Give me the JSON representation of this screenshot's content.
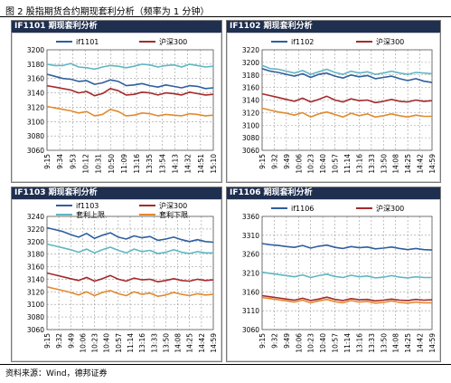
{
  "figure_title": "图 2 股指期货合约期现套利分析（频率为 1 分钟）",
  "source": "资料来源：Wind，德邦证券",
  "colors": {
    "header_bg": "#1f2f50",
    "if_series": "#2f5f9e",
    "hs300_series": "#a52a2a",
    "upper_bound": "#5fb7c3",
    "lower_bound": "#e38a2f"
  },
  "chart_data": [
    {
      "type": "line",
      "title": "IF1101 期现套利分析",
      "x_ticks": [
        "9:15",
        "9:34",
        "9:53",
        "10:12",
        "10:31",
        "10:50",
        "11:09",
        "13:16",
        "13:35",
        "13:54",
        "14:13",
        "14:32",
        "14:51",
        "15:10"
      ],
      "y_ticks": [
        3060,
        3080,
        3100,
        3120,
        3140,
        3160,
        3180,
        3200
      ],
      "ylim": [
        3060,
        3200
      ],
      "grid": true,
      "legend_position": "top",
      "legend": [
        "if1101",
        "沪深300"
      ],
      "series": [
        {
          "name": "if1101",
          "color_key": "if_series",
          "values": [
            3166,
            3163,
            3160,
            3159,
            3156,
            3157,
            3152,
            3154,
            3158,
            3156,
            3150,
            3151,
            3153,
            3150,
            3148,
            3151,
            3149,
            3147,
            3150,
            3149,
            3146,
            3147
          ]
        },
        {
          "name": "沪深300",
          "color_key": "hs300_series",
          "values": [
            3150,
            3148,
            3146,
            3144,
            3140,
            3142,
            3136,
            3139,
            3146,
            3143,
            3137,
            3138,
            3141,
            3140,
            3137,
            3140,
            3139,
            3137,
            3141,
            3139,
            3137,
            3138
          ]
        },
        {
          "color_key": "upper_bound",
          "values": [
            3180,
            3178,
            3178,
            3181,
            3176,
            3175,
            3173,
            3176,
            3178,
            3177,
            3175,
            3177,
            3180,
            3179,
            3176,
            3178,
            3179,
            3176,
            3180,
            3178,
            3176,
            3177
          ]
        },
        {
          "color_key": "lower_bound",
          "values": [
            3121,
            3119,
            3117,
            3115,
            3112,
            3114,
            3108,
            3110,
            3117,
            3114,
            3108,
            3109,
            3112,
            3111,
            3108,
            3110,
            3109,
            3108,
            3111,
            3110,
            3108,
            3109
          ]
        }
      ]
    },
    {
      "type": "line",
      "title": "IF1102 期现套利分析",
      "x_ticks": [
        "9:15",
        "9:32",
        "9:49",
        "10:06",
        "10:23",
        "10:40",
        "10:57",
        "11:14",
        "13:16",
        "13:33",
        "13:50",
        "14:08",
        "14:25",
        "14:42",
        "14:59"
      ],
      "y_ticks": [
        3060,
        3080,
        3100,
        3120,
        3140,
        3160,
        3180,
        3200,
        3220
      ],
      "ylim": [
        3060,
        3220
      ],
      "grid": true,
      "legend_position": "top",
      "legend": [
        "if1102",
        "沪深300"
      ],
      "series": [
        {
          "name": "if1102",
          "color_key": "if_series",
          "values": [
            3190,
            3186,
            3184,
            3181,
            3178,
            3182,
            3176,
            3181,
            3183,
            3178,
            3175,
            3180,
            3177,
            3179,
            3174,
            3176,
            3178,
            3174,
            3171,
            3174,
            3170,
            3168
          ]
        },
        {
          "name": "沪深300",
          "color_key": "hs300_series",
          "values": [
            3150,
            3147,
            3144,
            3141,
            3138,
            3143,
            3137,
            3141,
            3146,
            3140,
            3137,
            3142,
            3139,
            3140,
            3136,
            3138,
            3141,
            3138,
            3137,
            3140,
            3138,
            3139
          ]
        },
        {
          "color_key": "upper_bound",
          "values": [
            3195,
            3190,
            3189,
            3186,
            3183,
            3187,
            3181,
            3185,
            3189,
            3184,
            3181,
            3186,
            3183,
            3185,
            3181,
            3183,
            3186,
            3183,
            3181,
            3184,
            3183,
            3182
          ]
        },
        {
          "color_key": "lower_bound",
          "values": [
            3127,
            3124,
            3121,
            3119,
            3116,
            3120,
            3113,
            3118,
            3121,
            3117,
            3113,
            3119,
            3115,
            3118,
            3113,
            3115,
            3118,
            3115,
            3113,
            3116,
            3114,
            3114
          ]
        }
      ]
    },
    {
      "type": "line",
      "title": "IF1103 期现套利分析",
      "x_ticks": [
        "9:15",
        "9:32",
        "9:49",
        "10:06",
        "10:23",
        "10:40",
        "10:57",
        "11:14",
        "13:16",
        "13:33",
        "13:50",
        "14:08",
        "14:25",
        "14:42",
        "14:59"
      ],
      "y_ticks": [
        3060,
        3080,
        3100,
        3120,
        3140,
        3160,
        3180,
        3200,
        3220,
        3240
      ],
      "ylim": [
        3060,
        3240
      ],
      "grid": true,
      "legend_position": "top",
      "legend": [
        "if1103",
        "沪深300",
        "套利上限",
        "套利下限"
      ],
      "series": [
        {
          "name": "if1103",
          "color_key": "if_series",
          "values": [
            3222,
            3219,
            3216,
            3211,
            3207,
            3213,
            3205,
            3210,
            3214,
            3207,
            3204,
            3209,
            3206,
            3208,
            3202,
            3204,
            3207,
            3203,
            3200,
            3203,
            3200,
            3199
          ]
        },
        {
          "name": "沪深300",
          "color_key": "hs300_series",
          "values": [
            3150,
            3147,
            3144,
            3141,
            3138,
            3143,
            3137,
            3141,
            3146,
            3140,
            3137,
            3142,
            3139,
            3140,
            3136,
            3138,
            3141,
            3138,
            3137,
            3140,
            3138,
            3139
          ]
        },
        {
          "name": "套利上限",
          "color_key": "upper_bound",
          "values": [
            3196,
            3193,
            3190,
            3187,
            3183,
            3188,
            3182,
            3187,
            3191,
            3186,
            3182,
            3188,
            3184,
            3186,
            3181,
            3183,
            3187,
            3183,
            3181,
            3184,
            3182,
            3182
          ]
        },
        {
          "name": "套利下限",
          "color_key": "lower_bound",
          "values": [
            3128,
            3125,
            3122,
            3119,
            3115,
            3120,
            3114,
            3119,
            3122,
            3117,
            3114,
            3120,
            3116,
            3118,
            3113,
            3115,
            3119,
            3116,
            3114,
            3117,
            3115,
            3116
          ]
        }
      ]
    },
    {
      "type": "line",
      "title": "IF1106 期现套利分析",
      "x_ticks": [
        "9:15",
        "9:32",
        "9:49",
        "10:06",
        "10:23",
        "10:40",
        "10:57",
        "11:14",
        "13:16",
        "13:33",
        "13:50",
        "14:08",
        "14:25",
        "14:42",
        "14:59"
      ],
      "y_ticks": [
        3060,
        3110,
        3160,
        3210,
        3260,
        3310,
        3360
      ],
      "ylim": [
        3060,
        3360
      ],
      "grid": true,
      "legend_position": "top",
      "legend": [
        "if1106",
        "沪深300"
      ],
      "series": [
        {
          "name": "if1106",
          "color_key": "if_series",
          "values": [
            3288,
            3285,
            3283,
            3280,
            3278,
            3283,
            3276,
            3281,
            3284,
            3278,
            3275,
            3280,
            3277,
            3279,
            3274,
            3276,
            3279,
            3275,
            3272,
            3275,
            3272,
            3271
          ]
        },
        {
          "name": "沪深300",
          "color_key": "hs300_series",
          "values": [
            3150,
            3147,
            3144,
            3141,
            3138,
            3143,
            3137,
            3141,
            3146,
            3140,
            3137,
            3142,
            3139,
            3140,
            3136,
            3138,
            3141,
            3138,
            3137,
            3140,
            3138,
            3139
          ]
        },
        {
          "color_key": "upper_bound",
          "values": [
            3212,
            3209,
            3206,
            3203,
            3200,
            3205,
            3198,
            3203,
            3207,
            3201,
            3198,
            3204,
            3200,
            3202,
            3197,
            3199,
            3203,
            3199,
            3197,
            3200,
            3198,
            3198
          ]
        },
        {
          "color_key": "lower_bound",
          "values": [
            3145,
            3142,
            3139,
            3136,
            3133,
            3138,
            3131,
            3136,
            3140,
            3134,
            3131,
            3137,
            3133,
            3135,
            3130,
            3132,
            3136,
            3132,
            3130,
            3133,
            3131,
            3131
          ]
        }
      ]
    }
  ]
}
